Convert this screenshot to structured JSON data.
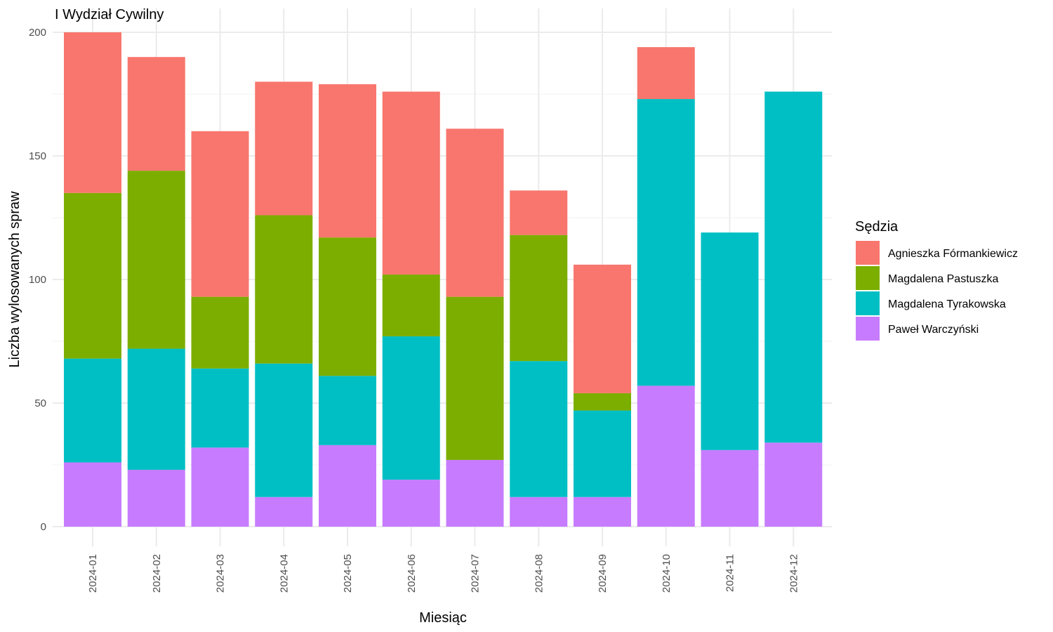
{
  "chart_data": {
    "type": "bar",
    "stacked": true,
    "title": "I Wydział Cywilny",
    "xlabel": "Miesiąc",
    "ylabel": "Liczba wylosowanych spraw",
    "ylim": [
      0,
      200
    ],
    "yticks": [
      0,
      50,
      100,
      150,
      200
    ],
    "grid": true,
    "legend": {
      "title": "Sędzia",
      "position": "right"
    },
    "categories": [
      "2024-01",
      "2024-02",
      "2024-03",
      "2024-04",
      "2024-05",
      "2024-06",
      "2024-07",
      "2024-08",
      "2024-09",
      "2024-10",
      "2024-11",
      "2024-12"
    ],
    "series": [
      {
        "name": "Paweł Warczyński",
        "color": "#C77CFF",
        "values": [
          26,
          23,
          32,
          12,
          33,
          19,
          27,
          12,
          12,
          57,
          31,
          34
        ]
      },
      {
        "name": "Magdalena Tyrakowska",
        "color": "#00BFC4",
        "values": [
          42,
          49,
          32,
          54,
          28,
          58,
          0,
          55,
          35,
          116,
          88,
          142
        ]
      },
      {
        "name": "Magdalena Pastuszka",
        "color": "#7CAE00",
        "values": [
          67,
          72,
          29,
          60,
          56,
          25,
          66,
          51,
          7,
          0,
          0,
          0
        ]
      },
      {
        "name": "Agnieszka Fórmankiewicz",
        "color": "#F8766D",
        "values": [
          65,
          46,
          67,
          54,
          62,
          74,
          68,
          18,
          52,
          21,
          0,
          0
        ]
      }
    ],
    "legend_order": [
      "Agnieszka Fórmankiewicz",
      "Magdalena Pastuszka",
      "Magdalena Tyrakowska",
      "Paweł Warczyński"
    ]
  }
}
